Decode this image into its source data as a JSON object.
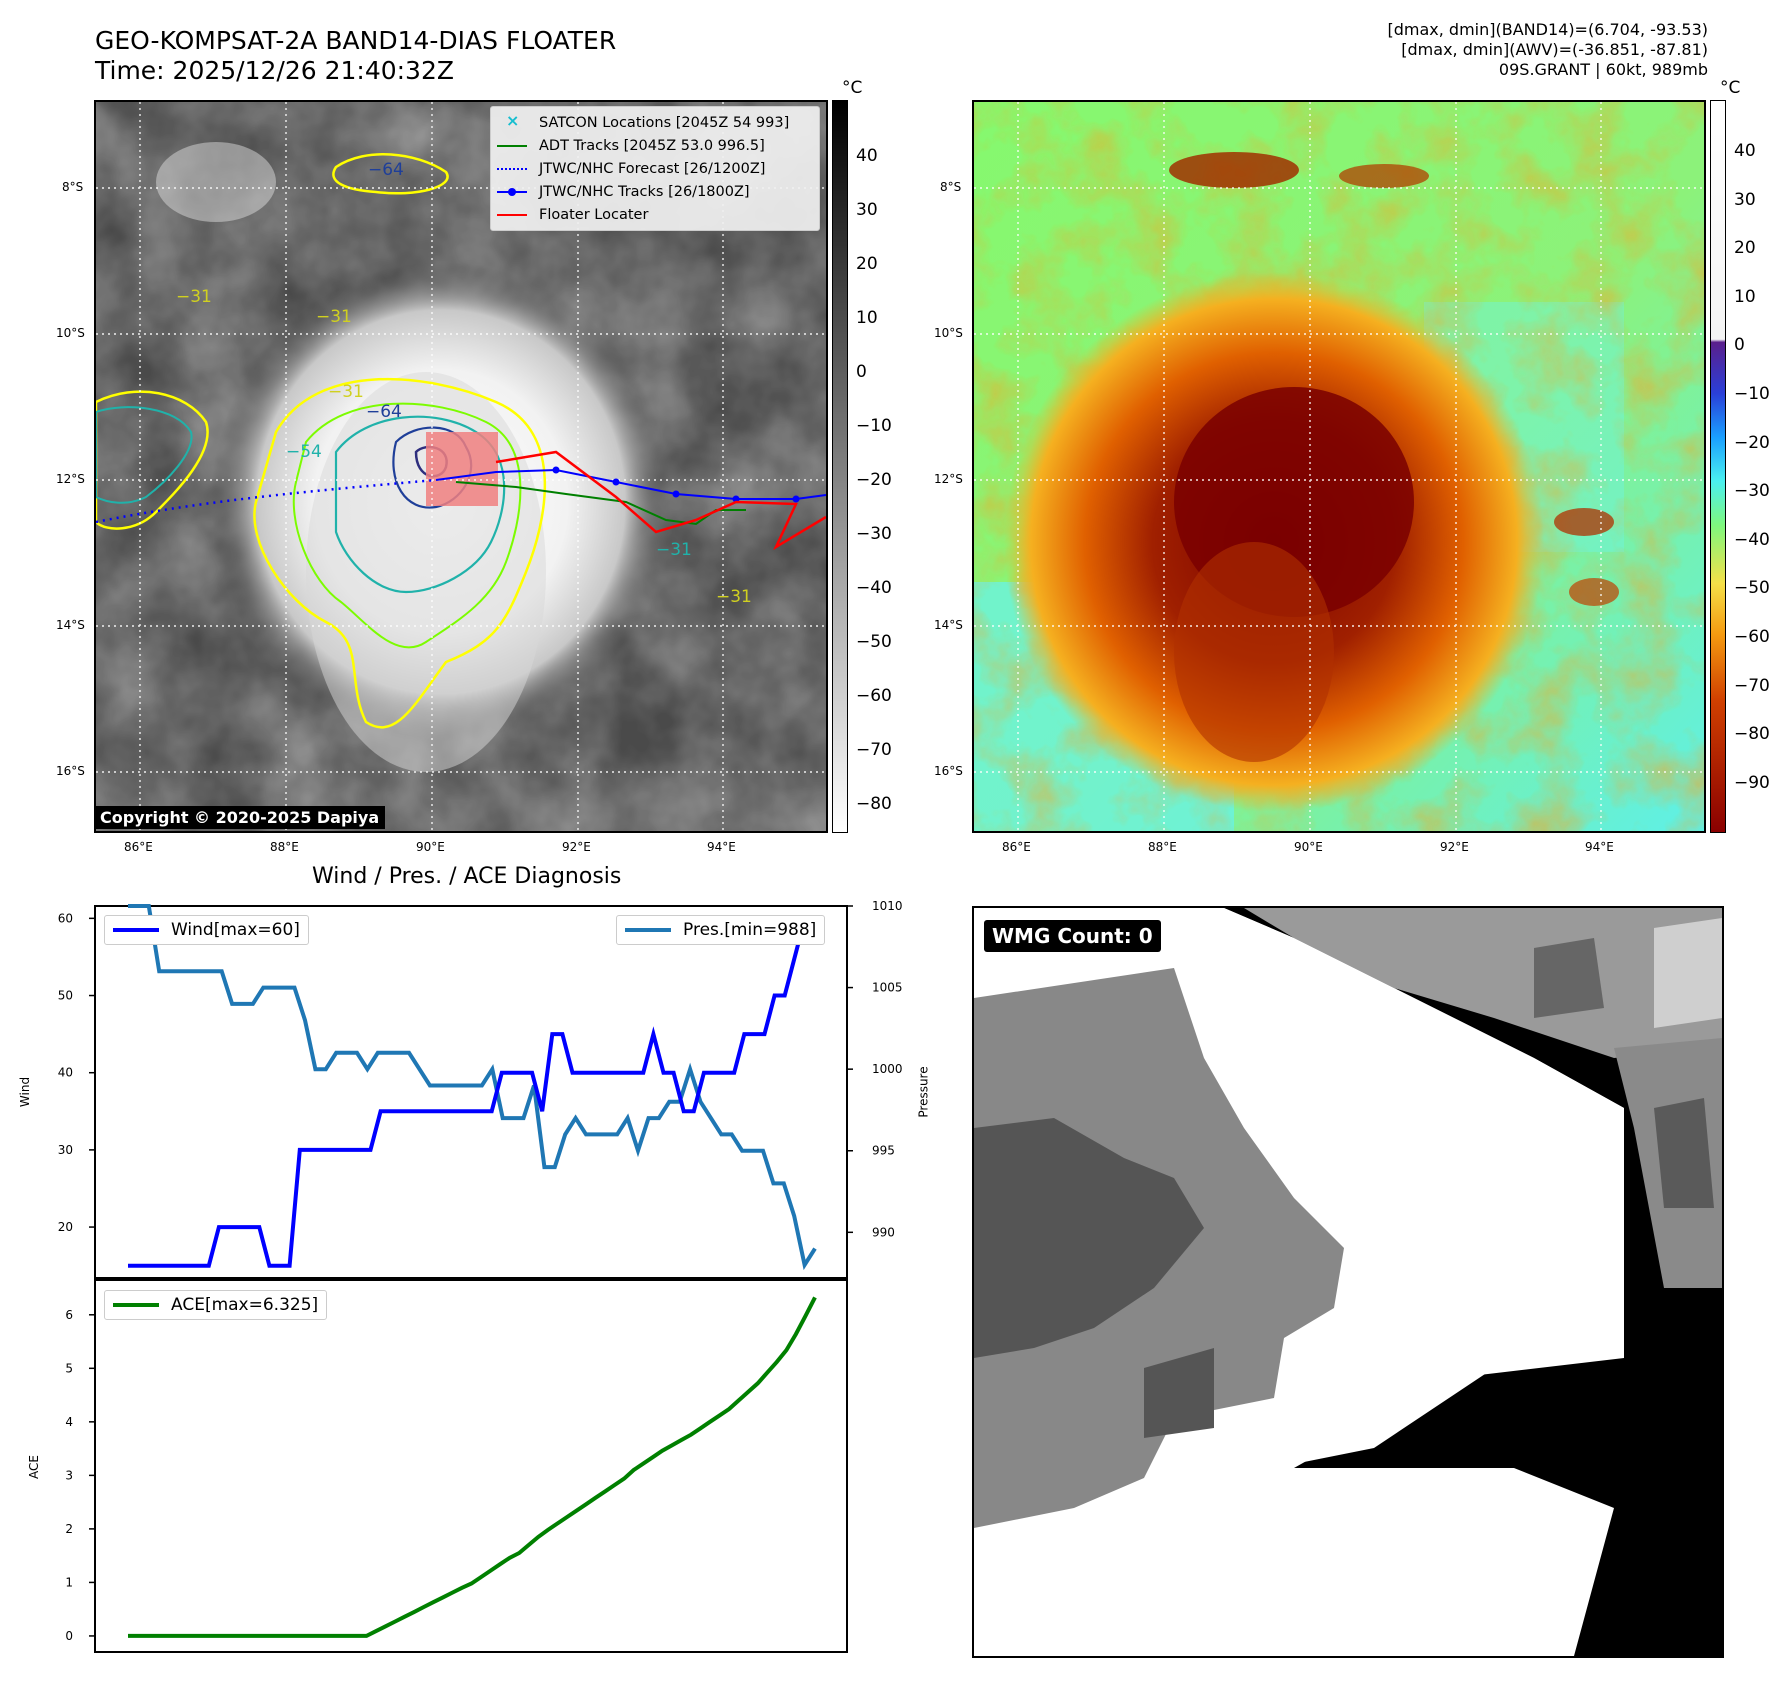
{
  "header": {
    "title_line1": "GEO-KOMPSAT-2A BAND14-DIAS FLOATER",
    "title_line2": "Time: 2025/12/26 21:40:32Z",
    "info_line1": "[dmax, dmin](BAND14)=(6.704, -93.53)",
    "info_line2": "[dmax, dmin](AWV)=(-36.851, -87.81)",
    "info_line3": "09S.GRANT | 60kt, 989mb"
  },
  "ir_panel": {
    "unit": "°C",
    "colorbar_ticks": [
      "40",
      "30",
      "20",
      "10",
      "0",
      "−10",
      "−20",
      "−30",
      "−40",
      "−50",
      "−60",
      "−70",
      "−80"
    ],
    "lat_labels": [
      "8°S",
      "10°S",
      "12°S",
      "14°S",
      "16°S"
    ],
    "lon_labels": [
      "86°E",
      "88°E",
      "90°E",
      "92°E",
      "94°E"
    ],
    "contour_labels": [
      "−64",
      "−31",
      "−31",
      "−31",
      "−64",
      "−54",
      "−31",
      "−31"
    ],
    "copyright": "Copyright © 2020-2025 Dapiya",
    "legend": [
      {
        "label": "SATCON Locations [2045Z 54 993]",
        "color": "#17becf",
        "kind": "x"
      },
      {
        "label": "ADT Tracks [2045Z 53.0 996.5]",
        "color": "#008000",
        "kind": "line"
      },
      {
        "label": "JTWC/NHC Forecast [26/1200Z]",
        "color": "#0000ff",
        "kind": "dotted"
      },
      {
        "label": "JTWC/NHC Tracks [26/1800Z]",
        "color": "#0000ff",
        "kind": "dotline"
      },
      {
        "label": "Floater Locater",
        "color": "#ff0000",
        "kind": "line"
      }
    ]
  },
  "awv_panel": {
    "unit": "°C",
    "colorbar_ticks": [
      "40",
      "30",
      "20",
      "10",
      "0",
      "−10",
      "−20",
      "−30",
      "−40",
      "−50",
      "−60",
      "−70",
      "−80",
      "−90"
    ],
    "lat_labels": [
      "8°S",
      "10°S",
      "12°S",
      "14°S",
      "16°S"
    ],
    "lon_labels": [
      "86°E",
      "88°E",
      "90°E",
      "92°E",
      "94°E"
    ]
  },
  "diagnosis": {
    "title": "Wind / Pres. / ACE Diagnosis",
    "wind_legend": "Wind[max=60]",
    "pres_legend": "Pres.[min=988]",
    "ace_legend": "ACE[max=6.325]",
    "wind_axis_label": "Wind",
    "pres_axis_label": "Pressure",
    "ace_axis_label": "ACE"
  },
  "wmg": {
    "badge": "WMG Count: 0"
  },
  "chart_data": [
    {
      "type": "line",
      "title": "Wind / Pres. / ACE Diagnosis",
      "ylabel": "Wind",
      "ylim": [
        13.4,
        61.6
      ],
      "yticks": [
        20,
        30,
        40,
        50,
        60
      ],
      "series": [
        {
          "name": "Wind[max=60]",
          "color": "#0000ff",
          "values": [
            15,
            15,
            15,
            15,
            15,
            15,
            15,
            15,
            15,
            20,
            20,
            20,
            20,
            20,
            15,
            15,
            15,
            30,
            30,
            30,
            30,
            30,
            30,
            30,
            30,
            35,
            35,
            35,
            35,
            35,
            35,
            35,
            35,
            35,
            35,
            35,
            35,
            40,
            40,
            40,
            40,
            35,
            45,
            45,
            40,
            40,
            40,
            40,
            40,
            40,
            40,
            40,
            45,
            40,
            40,
            35,
            35,
            40,
            40,
            40,
            40,
            45,
            45,
            45,
            50,
            50,
            55,
            60,
            60
          ]
        }
      ]
    },
    {
      "type": "line",
      "ylabel": "Pressure",
      "ylim": [
        987.2,
        1010.0
      ],
      "yticks": [
        990,
        995,
        1000,
        1005,
        1010
      ],
      "series": [
        {
          "name": "Pres.[min=988]",
          "color": "#1f77b4",
          "values": [
            1010,
            1010,
            1010,
            1006,
            1006,
            1006,
            1006,
            1006,
            1006,
            1006,
            1004,
            1004,
            1004,
            1005,
            1005,
            1005,
            1005,
            1003,
            1000,
            1000,
            1001,
            1001,
            1001,
            1000,
            1001,
            1001,
            1001,
            1001,
            1000,
            999,
            999,
            999,
            999,
            999,
            999,
            1000,
            997,
            997,
            997,
            999,
            994,
            994,
            996,
            997,
            996,
            996,
            996,
            996,
            997,
            995,
            997,
            997,
            998,
            998,
            1000,
            998,
            997,
            996,
            996,
            995,
            995,
            995,
            993,
            993,
            991,
            988,
            989
          ]
        }
      ]
    },
    {
      "type": "line",
      "ylabel": "ACE",
      "ylim": [
        -0.3,
        6.65
      ],
      "yticks": [
        0,
        1,
        2,
        3,
        4,
        5,
        6
      ],
      "series": [
        {
          "name": "ACE[max=6.325]",
          "color": "#008000",
          "values": [
            0,
            0,
            0,
            0,
            0,
            0,
            0,
            0,
            0,
            0,
            0,
            0,
            0,
            0,
            0,
            0,
            0,
            0,
            0,
            0,
            0,
            0,
            0,
            0,
            0,
            0,
            0.09,
            0.18,
            0.27,
            0.36,
            0.45,
            0.54,
            0.63,
            0.72,
            0.81,
            0.9,
            0.98,
            1.1,
            1.22,
            1.34,
            1.46,
            1.55,
            1.7,
            1.85,
            1.98,
            2.1,
            2.22,
            2.34,
            2.46,
            2.58,
            2.7,
            2.82,
            2.94,
            3.1,
            3.22,
            3.34,
            3.46,
            3.56,
            3.66,
            3.76,
            3.88,
            4.0,
            4.12,
            4.24,
            4.4,
            4.56,
            4.72,
            4.92,
            5.12,
            5.34,
            5.64,
            5.98,
            6.325
          ]
        }
      ]
    }
  ]
}
